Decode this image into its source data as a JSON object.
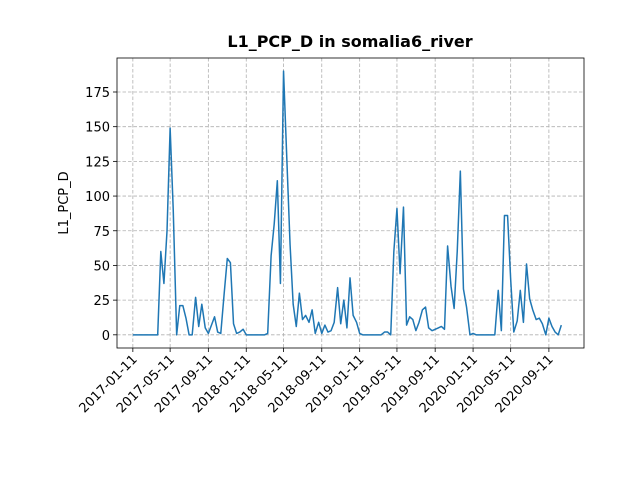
{
  "chart_data": {
    "type": "line",
    "title": "L1_PCP_D in somalia6_river",
    "y_label": "L1_PCP_D",
    "color": "#1f77b4",
    "grid": true,
    "x": [
      "2017-01-11",
      "2017-01-21",
      "2017-02-01",
      "2017-02-11",
      "2017-02-21",
      "2017-03-01",
      "2017-03-11",
      "2017-03-21",
      "2017-04-01",
      "2017-04-11",
      "2017-04-21",
      "2017-05-01",
      "2017-05-11",
      "2017-05-21",
      "2017-06-01",
      "2017-06-11",
      "2017-06-21",
      "2017-07-01",
      "2017-07-11",
      "2017-07-21",
      "2017-08-01",
      "2017-08-11",
      "2017-08-21",
      "2017-09-01",
      "2017-09-11",
      "2017-09-21",
      "2017-10-01",
      "2017-10-11",
      "2017-10-21",
      "2017-11-01",
      "2017-11-11",
      "2017-11-21",
      "2017-12-01",
      "2017-12-11",
      "2017-12-21",
      "2018-01-01",
      "2018-01-11",
      "2018-01-21",
      "2018-02-01",
      "2018-02-11",
      "2018-02-21",
      "2018-03-01",
      "2018-03-11",
      "2018-03-21",
      "2018-04-01",
      "2018-04-11",
      "2018-04-21",
      "2018-05-01",
      "2018-05-11",
      "2018-05-21",
      "2018-06-01",
      "2018-06-11",
      "2018-06-21",
      "2018-07-01",
      "2018-07-11",
      "2018-07-21",
      "2018-08-01",
      "2018-08-11",
      "2018-08-21",
      "2018-09-01",
      "2018-09-11",
      "2018-09-21",
      "2018-10-01",
      "2018-10-11",
      "2018-10-21",
      "2018-11-01",
      "2018-11-11",
      "2018-11-21",
      "2018-12-01",
      "2018-12-11",
      "2018-12-21",
      "2019-01-01",
      "2019-01-11",
      "2019-01-21",
      "2019-02-01",
      "2019-02-11",
      "2019-02-21",
      "2019-03-01",
      "2019-03-11",
      "2019-03-21",
      "2019-04-01",
      "2019-04-11",
      "2019-04-21",
      "2019-05-01",
      "2019-05-11",
      "2019-05-21",
      "2019-06-01",
      "2019-06-11",
      "2019-06-21",
      "2019-07-01",
      "2019-07-11",
      "2019-07-21",
      "2019-08-01",
      "2019-08-11",
      "2019-08-21",
      "2019-09-01",
      "2019-09-11",
      "2019-09-21",
      "2019-10-01",
      "2019-10-11",
      "2019-10-21",
      "2019-11-01",
      "2019-11-11",
      "2019-11-21",
      "2019-12-01",
      "2019-12-11",
      "2019-12-21",
      "2020-01-01",
      "2020-01-11",
      "2020-01-21",
      "2020-02-01",
      "2020-02-11",
      "2020-02-21",
      "2020-03-01",
      "2020-03-11",
      "2020-03-21",
      "2020-04-01",
      "2020-04-11",
      "2020-04-21",
      "2020-05-01",
      "2020-05-11",
      "2020-05-21",
      "2020-06-01",
      "2020-06-11",
      "2020-06-21",
      "2020-07-01",
      "2020-07-11",
      "2020-07-21",
      "2020-08-01",
      "2020-08-11",
      "2020-08-21",
      "2020-09-01",
      "2020-09-11",
      "2020-09-21",
      "2020-10-01",
      "2020-10-11",
      "2020-10-21"
    ],
    "values": [
      0,
      0,
      0,
      0,
      0,
      0,
      0,
      0,
      0,
      60,
      37,
      75,
      149,
      90,
      0,
      21,
      21,
      12,
      0,
      0,
      27,
      6,
      22,
      5,
      1,
      7,
      13,
      2,
      1,
      30,
      55,
      52,
      8,
      1,
      2,
      4,
      0,
      0,
      0,
      0,
      0,
      0,
      0,
      1,
      57,
      80,
      111,
      37,
      190,
      130,
      65,
      22,
      6,
      30,
      11,
      14,
      9,
      18,
      1,
      9,
      1,
      7,
      2,
      3,
      9,
      34,
      8,
      25,
      5,
      41,
      14,
      9,
      1,
      0,
      0,
      0,
      0,
      0,
      0,
      0,
      2,
      2,
      0,
      60,
      91,
      44,
      92,
      7,
      13,
      11,
      3,
      9,
      18,
      20,
      5,
      3,
      4,
      5,
      6,
      4,
      64,
      35,
      19,
      60,
      118,
      33,
      20,
      0,
      1,
      0,
      0,
      0,
      0,
      0,
      0,
      0,
      32,
      3,
      86,
      86,
      40,
      2,
      10,
      32,
      9,
      51,
      26,
      18,
      11,
      12,
      8,
      0,
      12,
      6,
      2,
      0,
      7
    ],
    "xlim": [
      "2016-11-21",
      "2021-01-02"
    ],
    "xticks": [
      "2017-01-11",
      "2017-05-11",
      "2017-09-11",
      "2018-01-11",
      "2018-05-11",
      "2018-09-11",
      "2019-01-11",
      "2019-05-11",
      "2019-09-11",
      "2020-01-11",
      "2020-05-11",
      "2020-09-11"
    ],
    "ylim": [
      -9.5,
      199.5
    ],
    "yticks": [
      0,
      25,
      50,
      75,
      100,
      125,
      150,
      175
    ]
  }
}
